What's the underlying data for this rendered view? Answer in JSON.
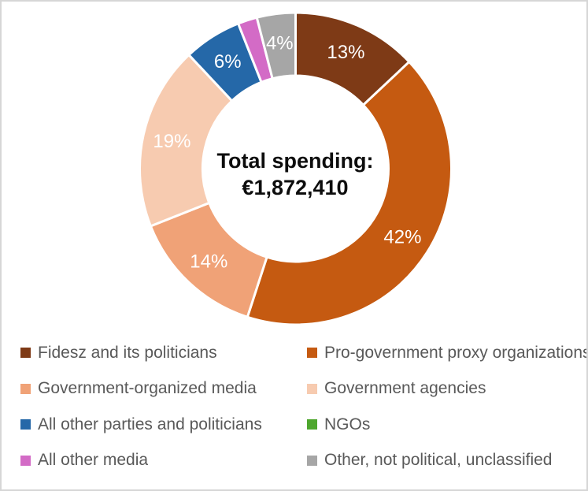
{
  "chart_data": {
    "type": "pie",
    "subtype": "donut",
    "title": "",
    "center_label": {
      "line1": "Total spending:",
      "line2": "€1,872,410"
    },
    "units": "percent",
    "start_angle_deg": 0,
    "direction": "clockwise",
    "donut_hole_ratio": 0.6,
    "legend_position": "bottom",
    "slice_border_color": "#ffffff",
    "label_color": "#ffffff",
    "series": [
      {
        "name": "Fidesz and its politicians",
        "value": 13,
        "label": "13%",
        "color": "#7E3A16"
      },
      {
        "name": "Pro-government proxy organizations",
        "value": 42,
        "label": "42%",
        "color": "#C55A11"
      },
      {
        "name": "Government-organized media",
        "value": 14,
        "label": "14%",
        "color": "#F0A277"
      },
      {
        "name": "Government agencies",
        "value": 19,
        "label": "19%",
        "color": "#F7CBB0"
      },
      {
        "name": "All other parties and politicians",
        "value": 6,
        "label": "6%",
        "color": "#2568A8"
      },
      {
        "name": "NGOs",
        "value": 0,
        "label": "",
        "color": "#4EA72E"
      },
      {
        "name": "All other media",
        "value": 2,
        "label": "",
        "color": "#D36BC6"
      },
      {
        "name": "Other, not political, unclassified",
        "value": 4,
        "label": "4%",
        "color": "#A6A6A6"
      }
    ]
  }
}
